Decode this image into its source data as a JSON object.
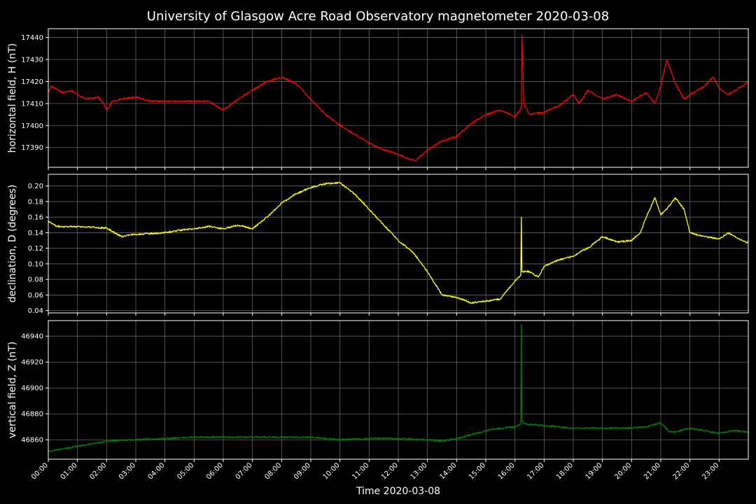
{
  "figure": {
    "title": "University of Glasgow Acre Road Observatory magnetometer 2020-03-08",
    "xlabel": "Time 2020-03-08",
    "background": "#000000",
    "grid_color": "#666666",
    "axes_color": "#ffffff"
  },
  "chart_data": [
    {
      "type": "line",
      "ylabel": "horizontal field, H (nT)",
      "color": "#ff0000",
      "ylim": [
        17381,
        17444
      ],
      "yticks": [
        17390,
        17400,
        17410,
        17420,
        17430,
        17440
      ],
      "xlim": [
        0,
        24
      ],
      "grid": true,
      "series": [
        {
          "x": [
            0,
            0.1,
            0.5,
            0.8,
            1,
            1.3,
            1.7,
            1.9,
            2,
            2.2,
            2.5,
            3,
            3.5,
            4,
            4.5,
            5,
            5.5,
            6,
            6.5,
            7,
            7.5,
            8,
            8.5,
            9,
            9.5,
            10,
            10.5,
            11,
            11.5,
            12,
            12.3,
            12.6,
            13,
            13.5,
            14,
            14.5,
            15,
            15.5,
            16,
            16.22,
            16.24,
            16.3,
            16.5,
            17,
            17.5,
            18,
            18.2,
            18.5,
            19,
            19.5,
            20,
            20.5,
            20.8,
            21,
            21.2,
            21.5,
            21.8,
            22,
            22.5,
            22.8,
            23,
            23.3,
            23.8,
            24
          ],
          "y": [
            17415,
            17418,
            17415,
            17416,
            17414,
            17412,
            17413,
            17410,
            17407,
            17411,
            17412,
            17413,
            17411,
            17411,
            17411,
            17411,
            17411,
            17407,
            17412,
            17416,
            17420,
            17422,
            17419,
            17412,
            17405,
            17400,
            17396,
            17392,
            17389,
            17387,
            17385,
            17384,
            17389,
            17393,
            17395,
            17401,
            17405,
            17407,
            17404,
            17408,
            17441,
            17410,
            17405,
            17406,
            17409,
            17414,
            17410,
            17416,
            17412,
            17414,
            17411,
            17415,
            17410,
            17418,
            17430,
            17419,
            17412,
            17414,
            17418,
            17422,
            17417,
            17414,
            17418,
            17420
          ]
        }
      ]
    },
    {
      "type": "line",
      "ylabel": "declination, D (degrees)",
      "color": "#ffff00",
      "ylim": [
        0.037,
        0.215
      ],
      "yticks": [
        0.04,
        0.06,
        0.08,
        0.1,
        0.12,
        0.14,
        0.16,
        0.18,
        0.2
      ],
      "xlim": [
        0,
        24
      ],
      "grid": true,
      "series": [
        {
          "x": [
            0,
            0.3,
            1,
            2,
            2.5,
            3,
            4,
            4.5,
            5,
            5.5,
            6,
            6.5,
            7,
            7.5,
            8,
            8.5,
            9,
            9.5,
            10,
            10.5,
            11,
            11.5,
            12,
            12.5,
            13,
            13.5,
            14,
            14.5,
            15,
            15.5,
            16,
            16.2,
            16.22,
            16.24,
            16.5,
            16.8,
            17,
            17.5,
            18,
            18.3,
            18.5,
            19,
            19.5,
            20,
            20.3,
            20.5,
            20.8,
            21,
            21.2,
            21.5,
            21.8,
            22,
            22.5,
            23,
            23.3,
            23.8,
            24
          ],
          "y": [
            0.155,
            0.148,
            0.148,
            0.146,
            0.135,
            0.138,
            0.14,
            0.143,
            0.145,
            0.148,
            0.145,
            0.15,
            0.145,
            0.16,
            0.178,
            0.19,
            0.198,
            0.203,
            0.204,
            0.19,
            0.17,
            0.15,
            0.13,
            0.115,
            0.09,
            0.06,
            0.057,
            0.05,
            0.052,
            0.055,
            0.078,
            0.085,
            0.16,
            0.09,
            0.09,
            0.083,
            0.097,
            0.105,
            0.11,
            0.117,
            0.12,
            0.135,
            0.128,
            0.13,
            0.14,
            0.16,
            0.185,
            0.163,
            0.17,
            0.185,
            0.17,
            0.14,
            0.135,
            0.132,
            0.14,
            0.13,
            0.127
          ]
        }
      ]
    },
    {
      "type": "line",
      "ylabel": "vertical field, Z (nT)",
      "color": "#008000",
      "ylim": [
        46845,
        46952
      ],
      "yticks": [
        46860,
        46880,
        46900,
        46920,
        46940
      ],
      "xlim": [
        0,
        24
      ],
      "grid": true,
      "xticks": [
        "00:00",
        "01:00",
        "02:00",
        "03:00",
        "04:00",
        "05:00",
        "06:00",
        "07:00",
        "08:00",
        "09:00",
        "10:00",
        "11:00",
        "12:00",
        "13:00",
        "14:00",
        "15:00",
        "16:00",
        "17:00",
        "18:00",
        "19:00",
        "20:00",
        "21:00",
        "22:00",
        "23:00"
      ],
      "series": [
        {
          "x": [
            0,
            0.5,
            1,
            1.5,
            2,
            3,
            4,
            5,
            6,
            7,
            8,
            9,
            10,
            11,
            12,
            13,
            13.5,
            14,
            14.5,
            15,
            15.5,
            16,
            16.2,
            16.22,
            16.24,
            16.4,
            17,
            18,
            19,
            20,
            20.5,
            21,
            21.3,
            21.5,
            22,
            22.5,
            23,
            23.5,
            24
          ],
          "y": [
            46851,
            46853,
            46855,
            46857,
            46859,
            46860,
            46861,
            46862,
            46862,
            46862,
            46862,
            46862,
            46860,
            46861,
            46861,
            46860,
            46859,
            46861,
            46864,
            46867,
            46869,
            46870,
            46872,
            46949,
            46874,
            46872,
            46871,
            46869,
            46869,
            46869,
            46870,
            46873,
            46866,
            46866,
            46869,
            46867,
            46865,
            46867,
            46866
          ]
        }
      ]
    }
  ]
}
